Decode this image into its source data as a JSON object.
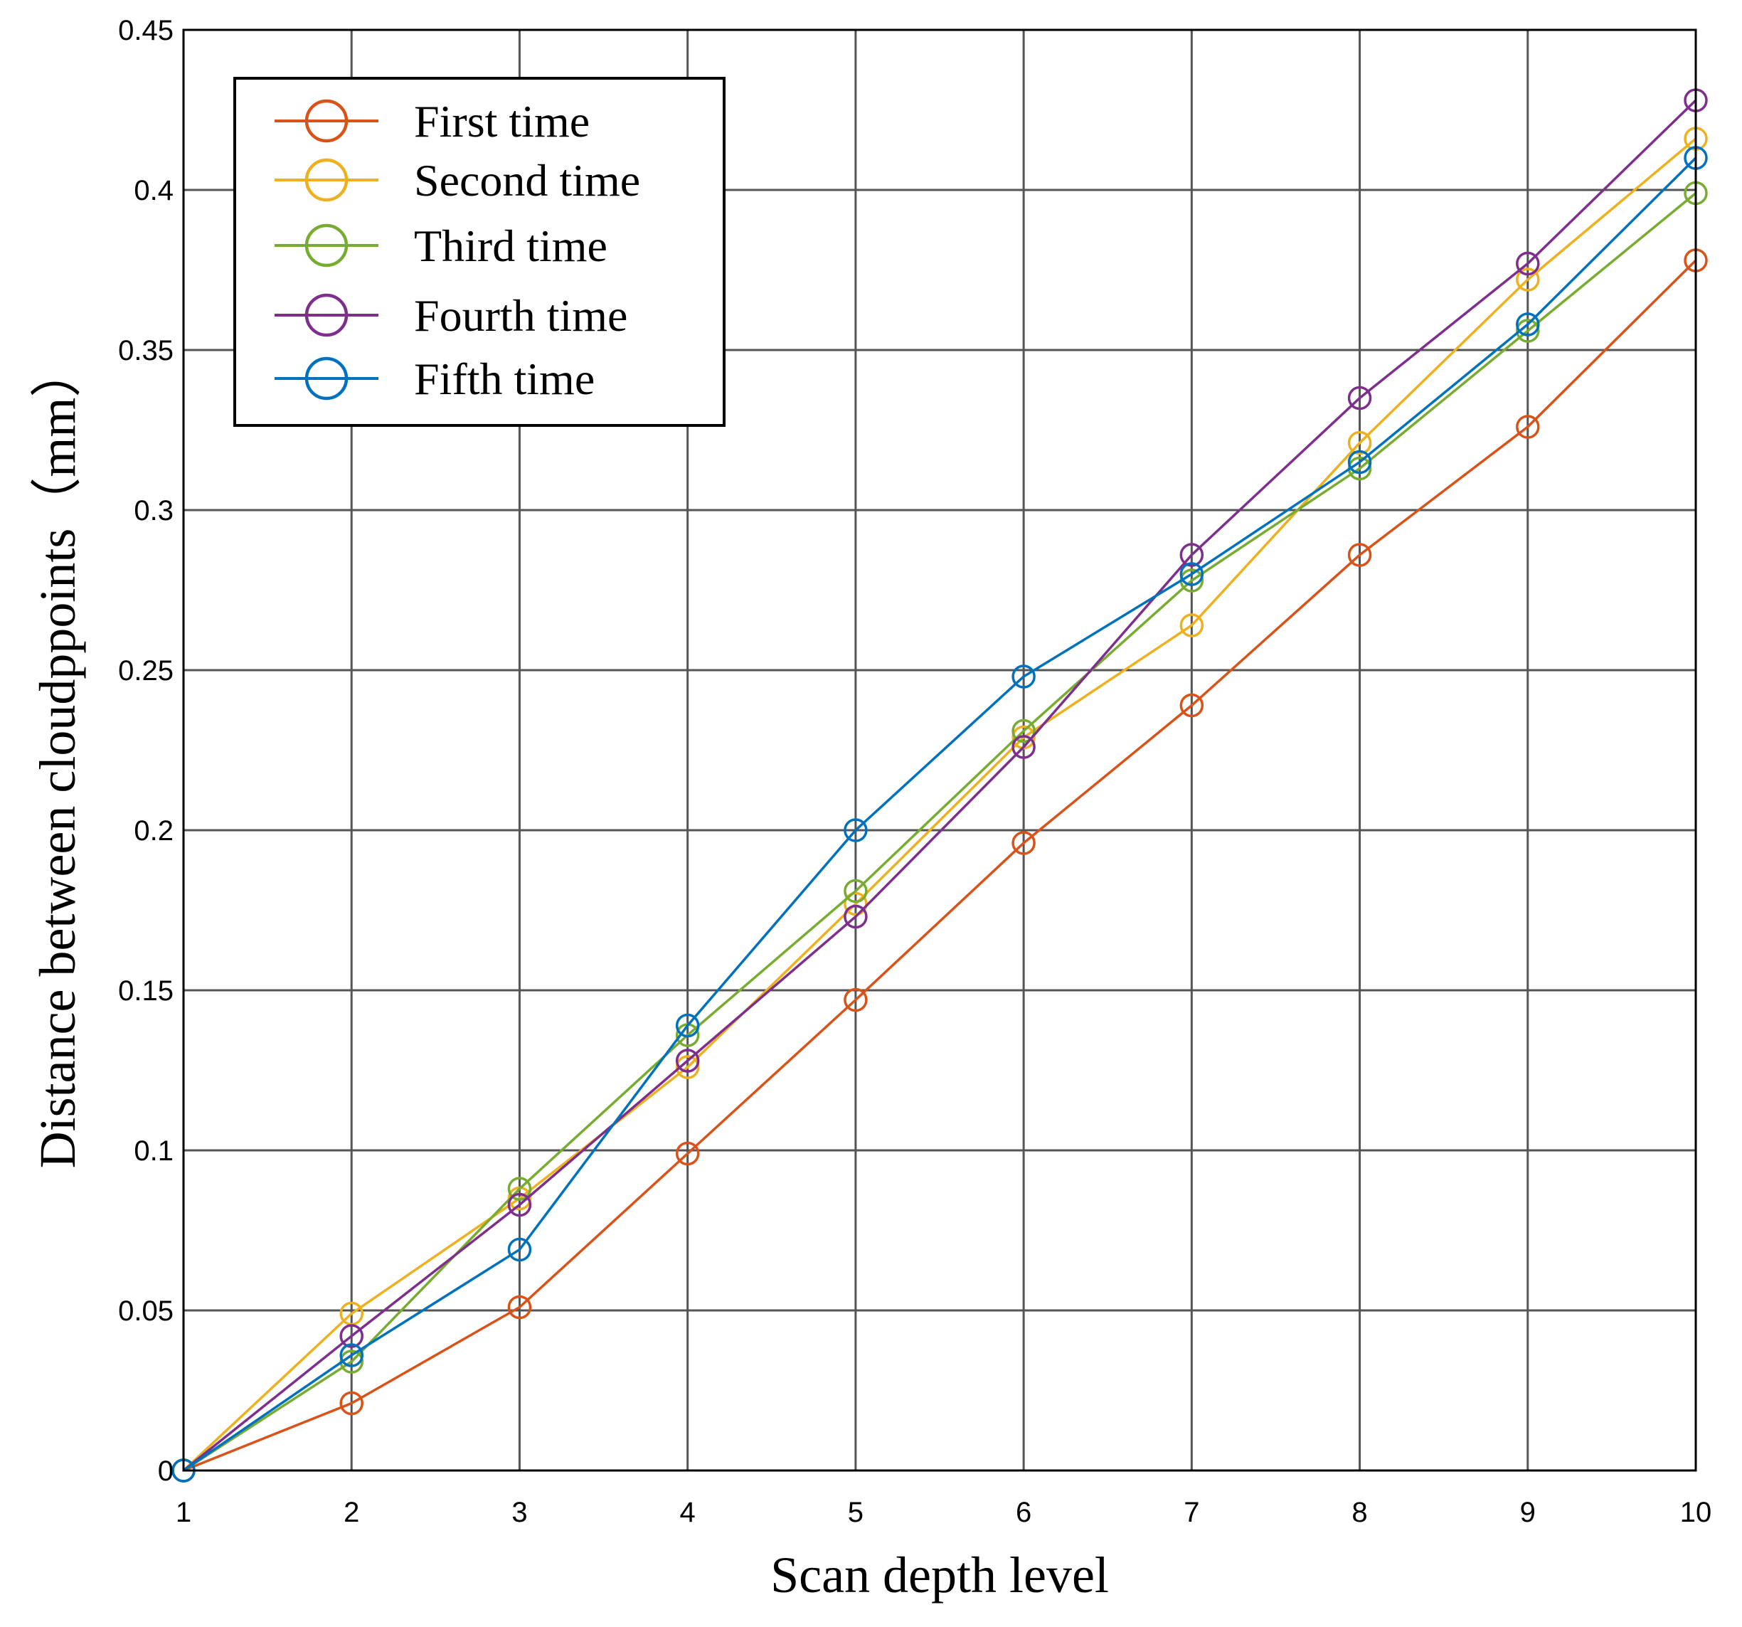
{
  "chart_data": {
    "type": "line",
    "title": "",
    "xlabel": "Scan depth level",
    "ylabel": "Distance between cloudppoints（mm）",
    "x": [
      1,
      2,
      3,
      4,
      5,
      6,
      7,
      8,
      9,
      10
    ],
    "xticks": [
      "1",
      "2",
      "3",
      "4",
      "5",
      "6",
      "7",
      "8",
      "9",
      "10"
    ],
    "yticks": [
      "0",
      "0.05",
      "0.1",
      "0.15",
      "0.2",
      "0.25",
      "0.3",
      "0.35",
      "0.4",
      "0.45"
    ],
    "xlim": [
      1,
      10
    ],
    "ylim": [
      0,
      0.45
    ],
    "grid": true,
    "legend_position": "top-left",
    "marker": "open-circle",
    "series": [
      {
        "name": "First time",
        "color": "#D95319",
        "values": [
          0,
          0.021,
          0.051,
          0.099,
          0.147,
          0.196,
          0.239,
          0.286,
          0.326,
          0.378
        ]
      },
      {
        "name": "Second time",
        "color": "#EDB120",
        "values": [
          0,
          0.049,
          0.085,
          0.126,
          0.177,
          0.229,
          0.264,
          0.321,
          0.372,
          0.416
        ]
      },
      {
        "name": "Third time",
        "color": "#77AC30",
        "values": [
          0,
          0.034,
          0.088,
          0.136,
          0.181,
          0.231,
          0.278,
          0.313,
          0.356,
          0.399
        ]
      },
      {
        "name": "Fourth time",
        "color": "#7E2F8E",
        "values": [
          0,
          0.042,
          0.083,
          0.128,
          0.173,
          0.226,
          0.286,
          0.335,
          0.377,
          0.428
        ]
      },
      {
        "name": "Fifth time",
        "color": "#0072BD",
        "values": [
          0,
          0.036,
          0.069,
          0.139,
          0.2,
          0.248,
          0.28,
          0.315,
          0.358,
          0.41
        ]
      }
    ]
  }
}
